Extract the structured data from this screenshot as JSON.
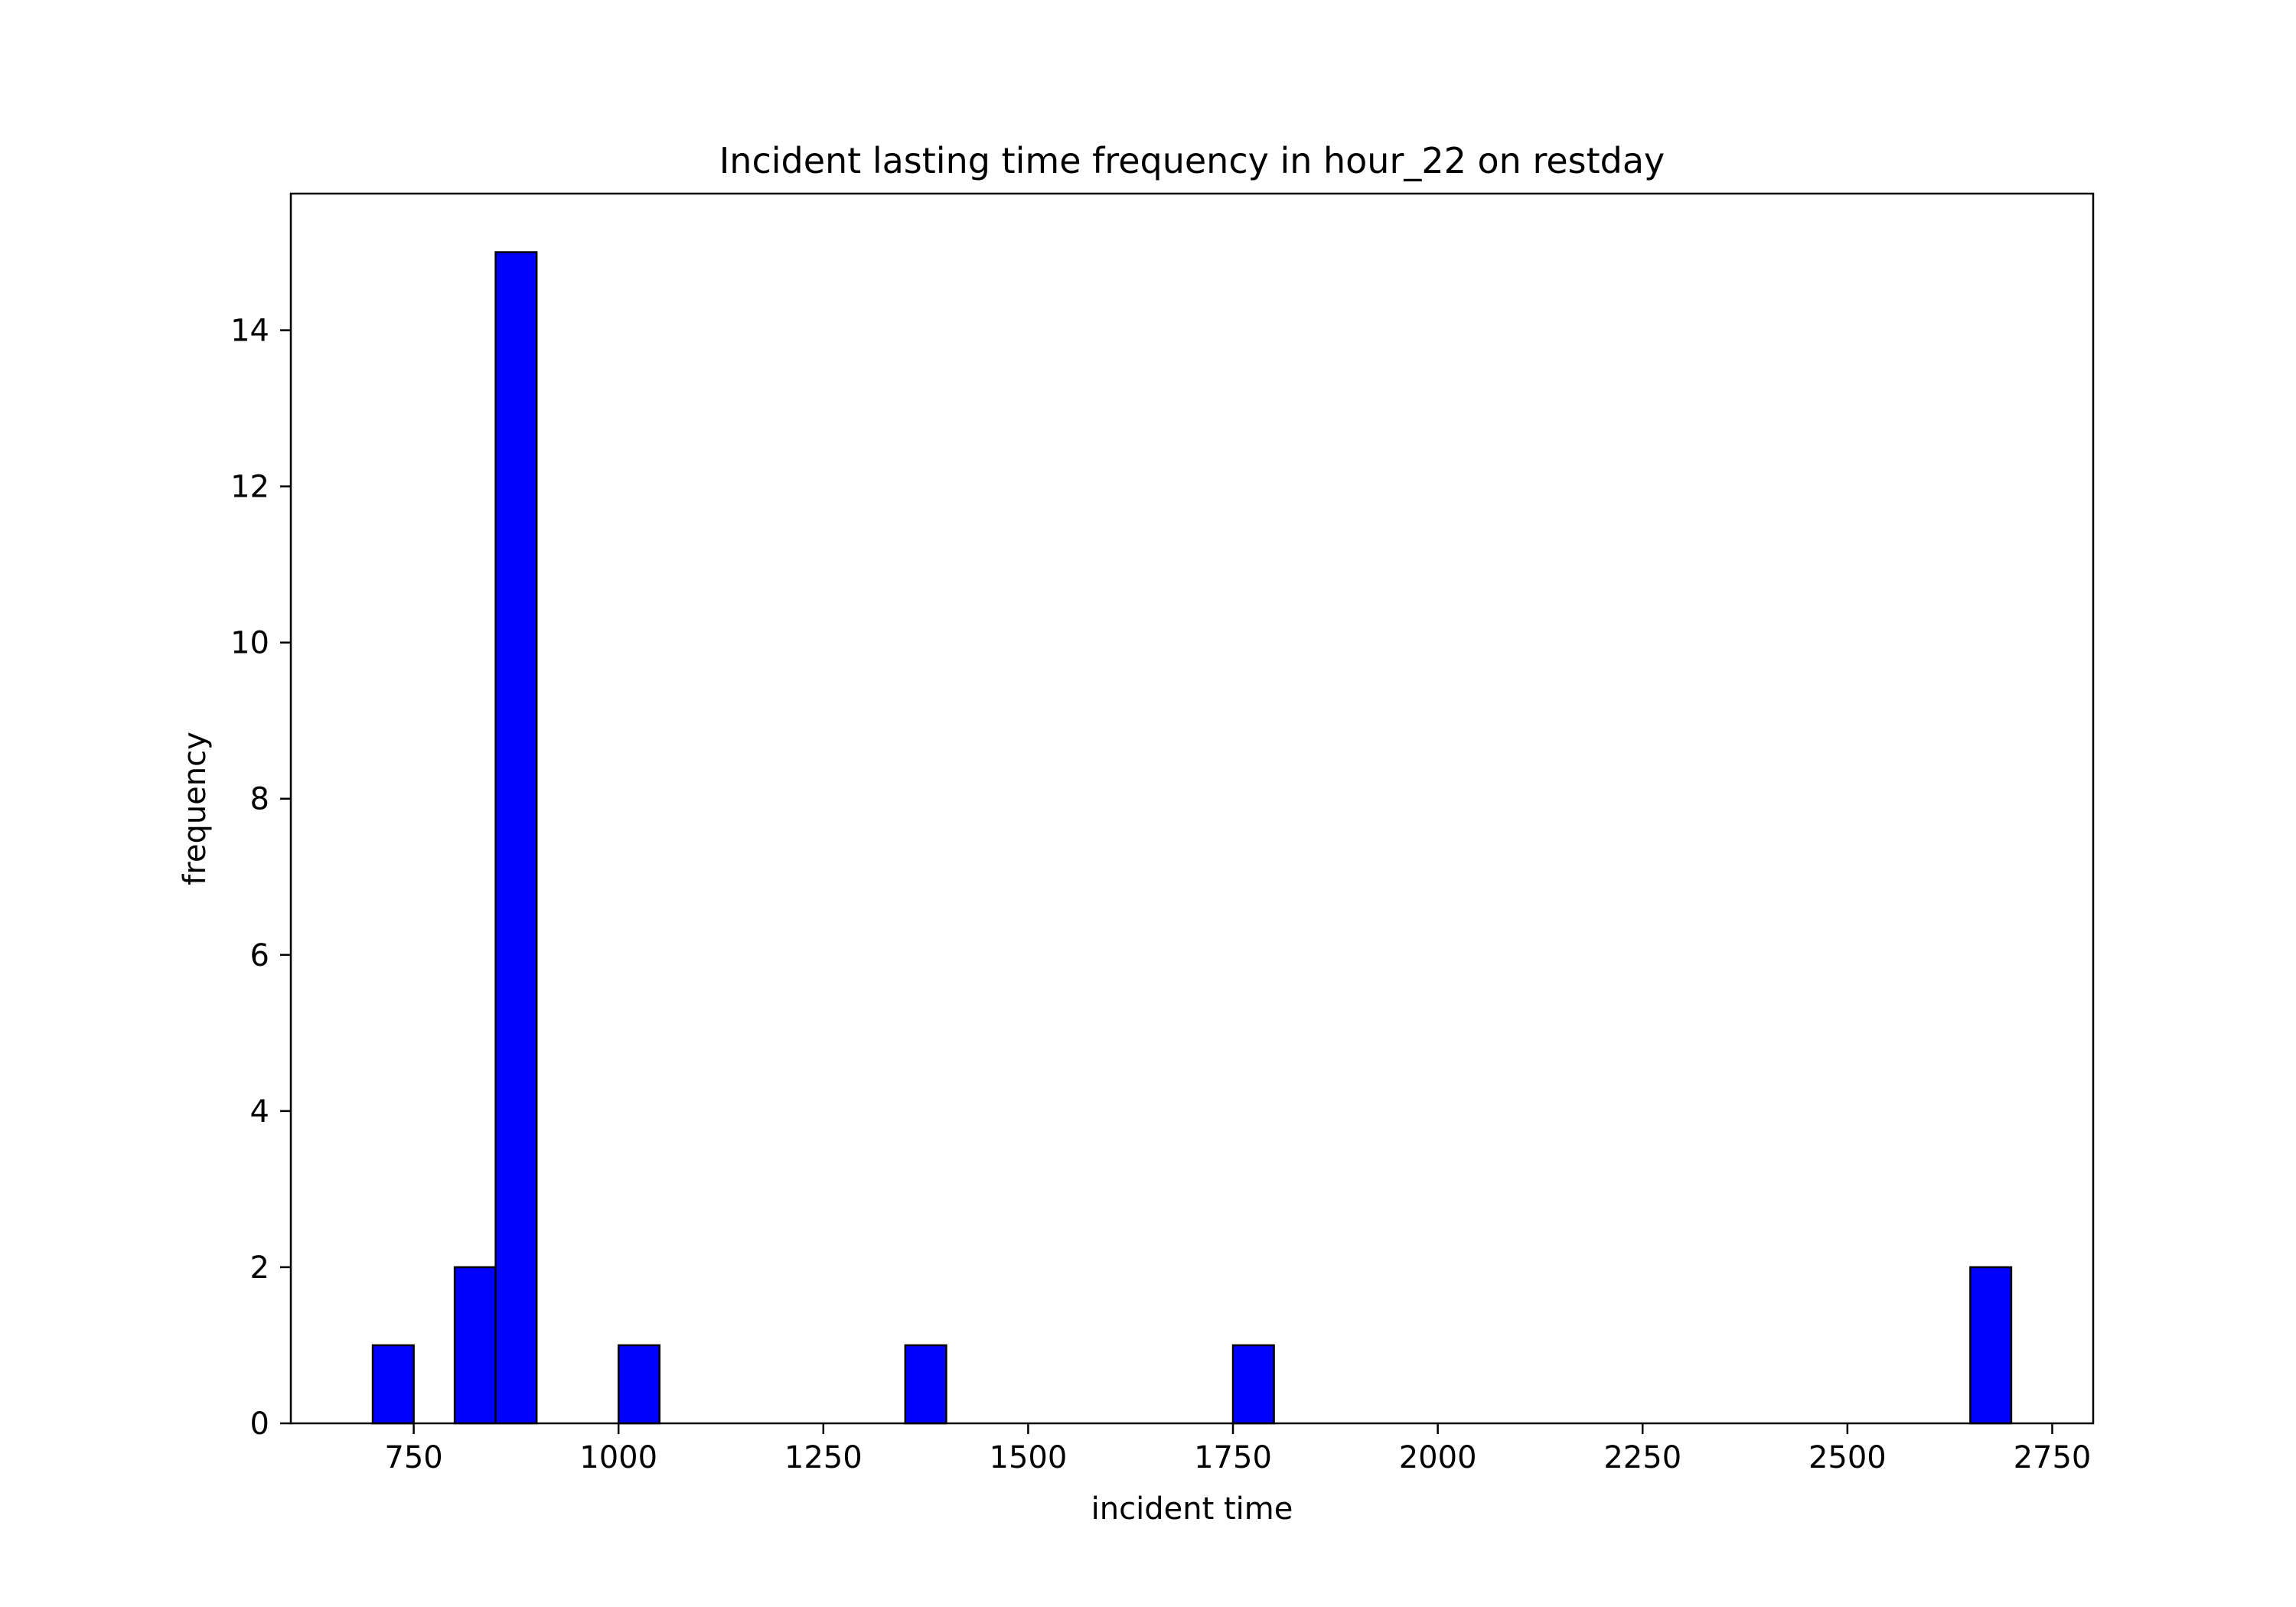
{
  "chart_data": {
    "type": "bar",
    "title": "Incident lasting time frequency in hour_22 on restday",
    "xlabel": "incident time",
    "ylabel": "frequency",
    "xlim": [
      600,
      2800
    ],
    "ylim": [
      0,
      15.75
    ],
    "xticks": [
      750,
      1000,
      1250,
      1500,
      1750,
      2000,
      2250,
      2500,
      2750
    ],
    "yticks": [
      0,
      2,
      4,
      6,
      8,
      10,
      12,
      14
    ],
    "bin_edges": [
      700,
      750,
      800,
      850,
      900,
      950,
      1000,
      1050,
      1100,
      1150,
      1200,
      1250,
      1300,
      1350,
      1400,
      1450,
      1500,
      1550,
      1600,
      1650,
      1700,
      1750,
      1800,
      1850,
      1900,
      1950,
      2000,
      2050,
      2100,
      2150,
      2200,
      2250,
      2300,
      2350,
      2400,
      2450,
      2500,
      2550,
      2600,
      2650,
      2700
    ],
    "values": [
      1,
      0,
      2,
      15,
      0,
      0,
      1,
      0,
      0,
      0,
      0,
      0,
      0,
      1,
      0,
      0,
      0,
      0,
      0,
      0,
      0,
      1,
      0,
      0,
      0,
      0,
      0,
      0,
      0,
      0,
      0,
      0,
      0,
      0,
      0,
      0,
      0,
      0,
      0,
      2
    ],
    "bar_color": "#0000ff",
    "edge_color": "#000000",
    "grid": false
  }
}
